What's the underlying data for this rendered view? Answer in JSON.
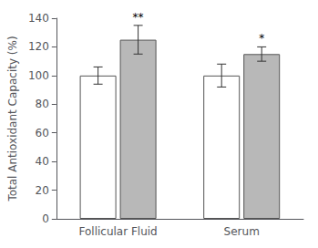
{
  "chart_data": {
    "type": "bar",
    "ylabel": "Total Antioxidant Capacity (%)",
    "categories": [
      "Follicular Fluid",
      "Serum"
    ],
    "series": [
      {
        "color": "white",
        "values": [
          100,
          100
        ],
        "errors": [
          6,
          8
        ]
      },
      {
        "color": "#b8b8b8",
        "values": [
          125,
          115
        ],
        "errors": [
          10,
          5
        ],
        "annotations": [
          "**",
          "*"
        ]
      }
    ],
    "ylim": [
      0,
      140
    ],
    "yticks": [
      0,
      20,
      40,
      60,
      80,
      100,
      120,
      140
    ],
    "grid": false
  }
}
